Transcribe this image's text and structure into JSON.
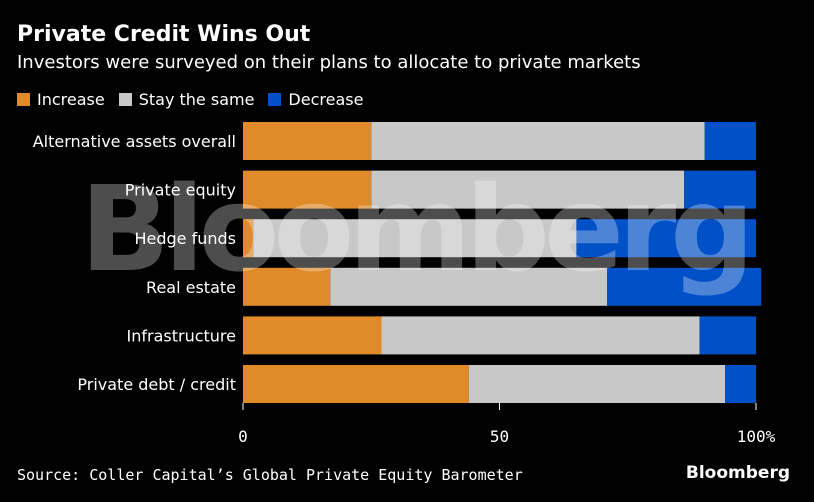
{
  "header": {
    "title": "Private Credit Wins Out",
    "subtitle": "Investors were surveyed on their plans to allocate to private markets"
  },
  "legend": {
    "items": [
      {
        "label": "Increase",
        "color": "#e08a2a"
      },
      {
        "label": "Stay the same",
        "color": "#c8c8c8"
      },
      {
        "label": "Decrease",
        "color": "#0050c8"
      }
    ]
  },
  "chart_data": {
    "type": "bar",
    "orientation": "horizontal",
    "stacked": true,
    "title": "Private Credit Wins Out",
    "subtitle": "Investors were surveyed on their plans to allocate to private markets",
    "categories": [
      "Alternative assets overall",
      "Private equity",
      "Hedge funds",
      "Real estate",
      "Infrastructure",
      "Private debt / credit"
    ],
    "series": [
      {
        "name": "Increase",
        "color": "#e08a2a",
        "values": [
          25,
          25,
          2,
          17,
          27,
          44
        ]
      },
      {
        "name": "Stay the same",
        "color": "#c8c8c8",
        "values": [
          65,
          61,
          63,
          54,
          62,
          50
        ]
      },
      {
        "name": "Decrease",
        "color": "#0050c8",
        "values": [
          10,
          14,
          35,
          30,
          11,
          6
        ]
      }
    ],
    "xlim": [
      0,
      100
    ],
    "xticks": [
      {
        "value": 0,
        "label": "0"
      },
      {
        "value": 50,
        "label": "50"
      },
      {
        "value": 100,
        "label": "100%"
      }
    ],
    "xlabel": "",
    "ylabel": "",
    "grid": false,
    "legend_position": "top-left"
  },
  "footer": {
    "source": "Source: Coller Capital’s Global Private Equity Barometer",
    "brand": "Bloomberg"
  },
  "watermark": {
    "text": "Bloomberg"
  }
}
